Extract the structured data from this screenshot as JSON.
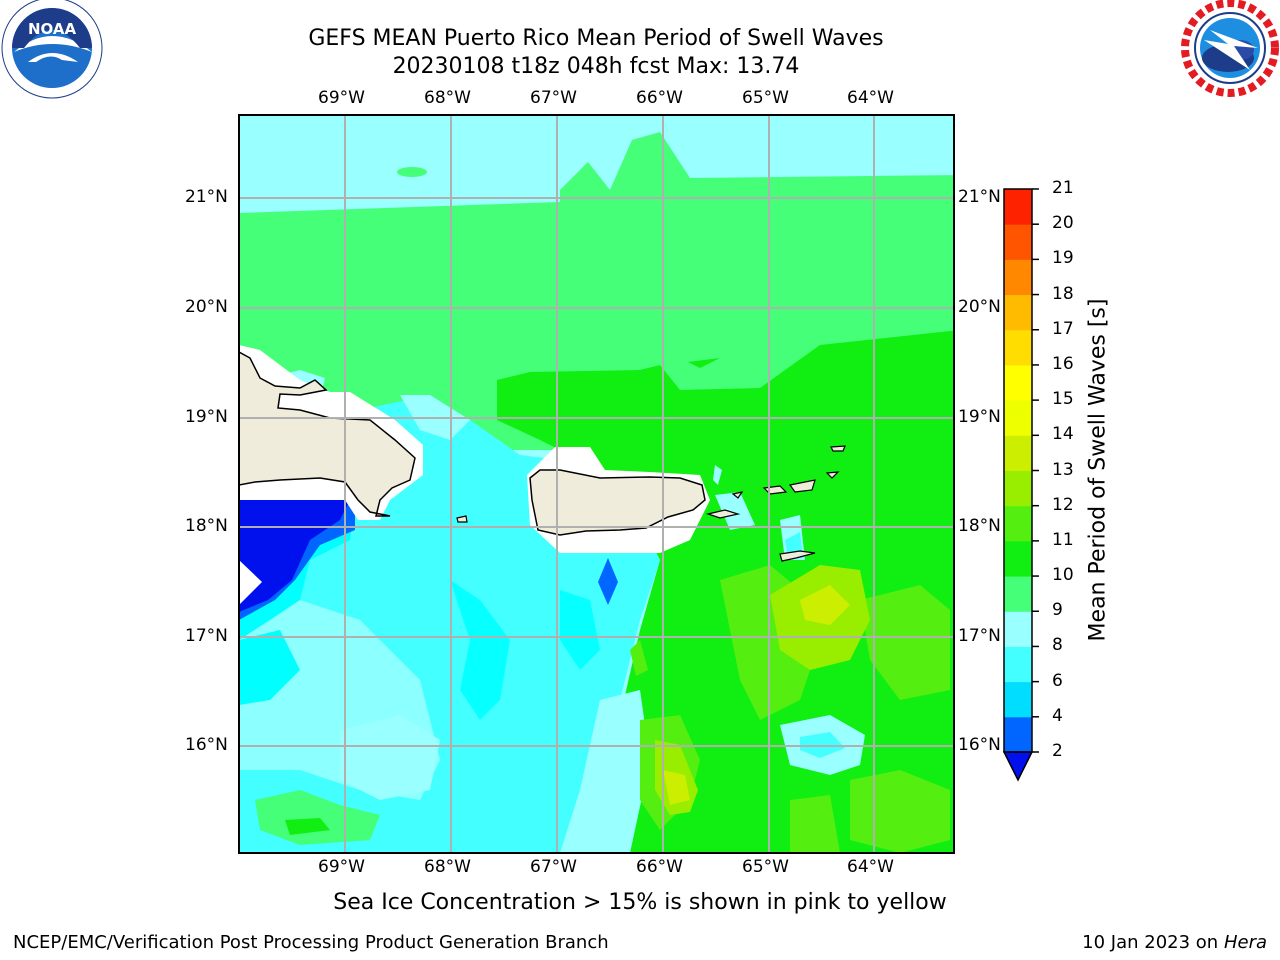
{
  "title_line1": "GEFS MEAN Puerto Rico Mean Period of Swell Waves",
  "title_line2": "20230108 t18z 048h fcst   Max: 13.74",
  "lon_labels": [
    "69°W",
    "68°W",
    "67°W",
    "66°W",
    "65°W",
    "64°W"
  ],
  "lat_labels": [
    "21°N",
    "20°N",
    "19°N",
    "18°N",
    "17°N",
    "16°N"
  ],
  "caption": "Sea Ice Concentration > 15% is shown in pink to yellow",
  "footer_left": "NCEP/EMC/Verification Post Processing Product Generation Branch",
  "footer_date": "10 Jan 2023 on ",
  "footer_machine": "Hera",
  "logo_left": "noaa-logo",
  "logo_right": "nws-logo",
  "colorbar": {
    "title": "Mean Period of Swell Waves [s]",
    "ticks": [
      "2",
      "4",
      "6",
      "8",
      "9",
      "10",
      "11",
      "12",
      "13",
      "14",
      "15",
      "16",
      "17",
      "18",
      "19",
      "20",
      "21"
    ],
    "colors": [
      "#0066ff",
      "#00ddff",
      "#44ffff",
      "#99ffff",
      "#44ff77",
      "#11ee11",
      "#55ee11",
      "#99ee00",
      "#ccee00",
      "#eeff00",
      "#ffff00",
      "#ffdd00",
      "#ffbb00",
      "#ff8800",
      "#ff5500",
      "#ff2200"
    ],
    "under_color": "#0011ee"
  },
  "map": {
    "land_color": "#efecdc",
    "grid_color": "#b0b0b0",
    "max_value": 13.74
  }
}
